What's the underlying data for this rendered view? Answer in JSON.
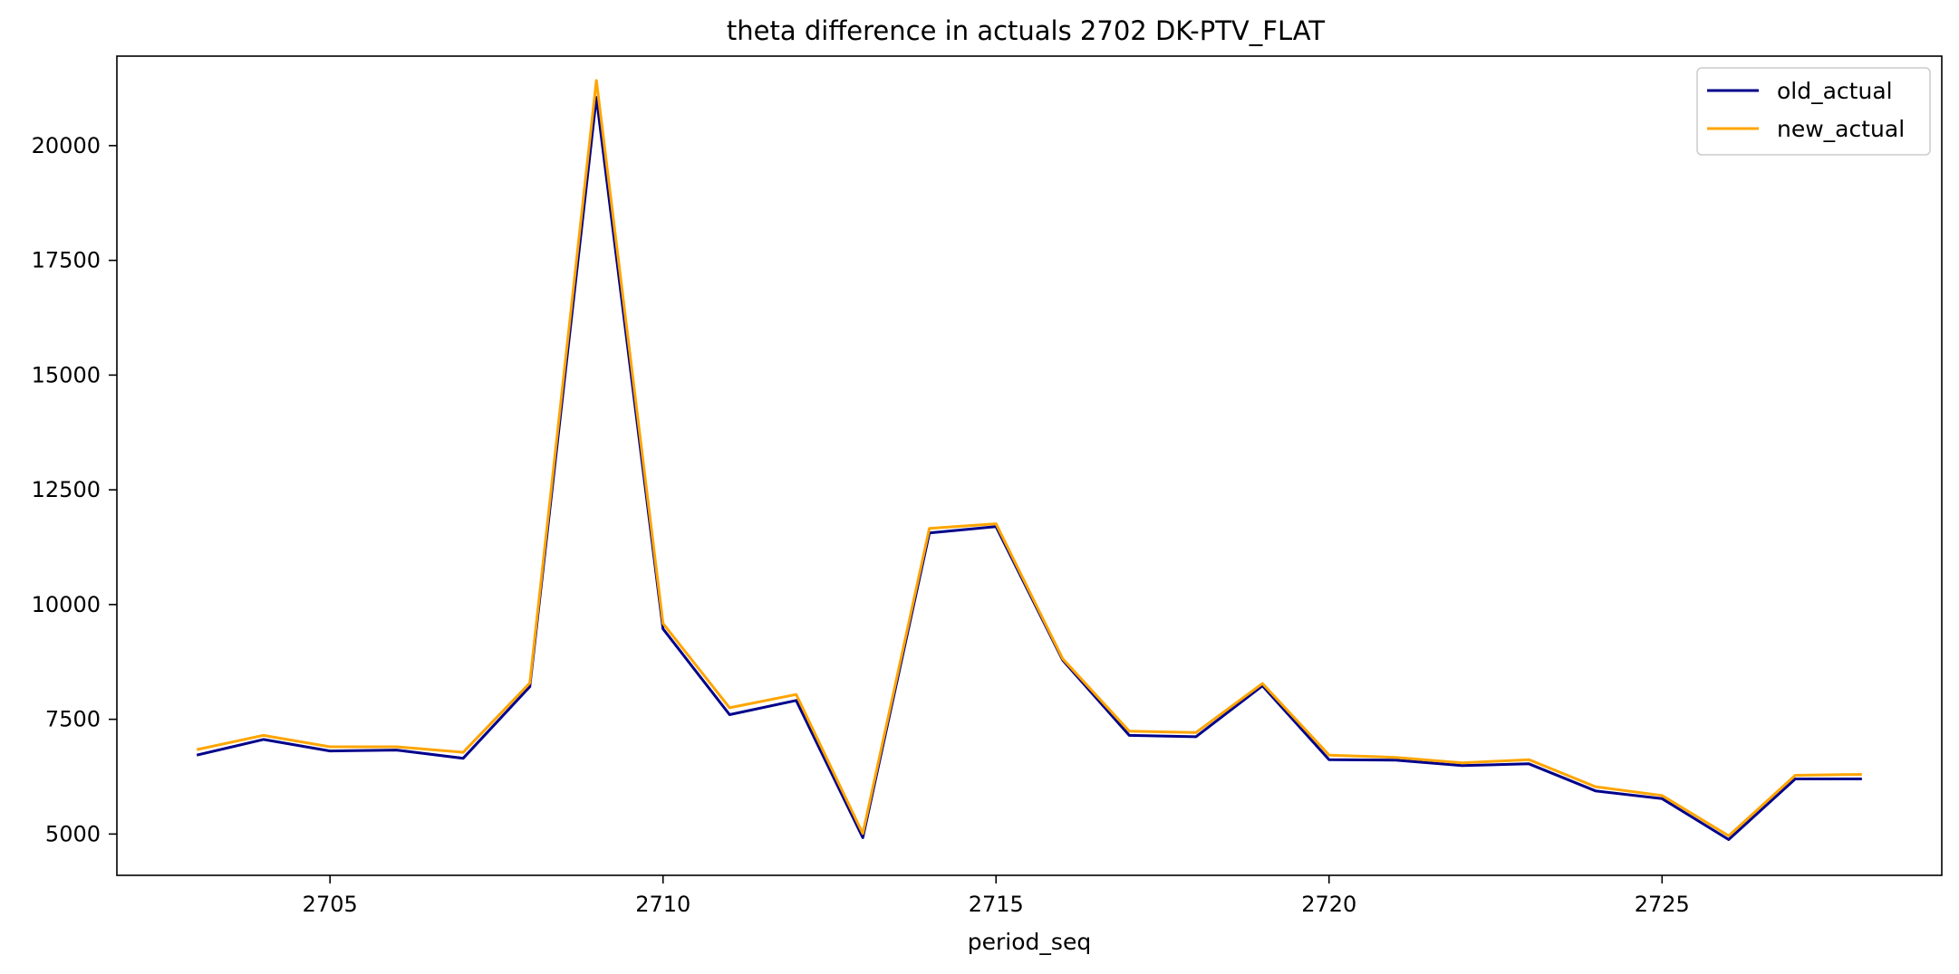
{
  "chart_data": {
    "type": "line",
    "title": "theta difference in actuals 2702 DK-PTV_FLAT",
    "xlabel": "period_seq",
    "ylabel": "",
    "xlim": [
      2701.8,
      2729.2
    ],
    "ylim": [
      4100,
      21950
    ],
    "xticks": [
      2705,
      2710,
      2715,
      2720,
      2725
    ],
    "yticks": [
      5000,
      7500,
      10000,
      12500,
      15000,
      17500,
      20000
    ],
    "grid": false,
    "legend_position": "top-right",
    "x": [
      2703,
      2704,
      2705,
      2706,
      2707,
      2708,
      2709,
      2710,
      2711,
      2712,
      2713,
      2714,
      2715,
      2716,
      2717,
      2718,
      2719,
      2720,
      2721,
      2722,
      2723,
      2724,
      2725,
      2726,
      2727,
      2728
    ],
    "series": [
      {
        "name": "old_actual",
        "color": "#00008b",
        "values": [
          6720,
          7060,
          6810,
          6830,
          6650,
          8210,
          21050,
          9470,
          7600,
          7910,
          4920,
          11560,
          11700,
          8790,
          7150,
          7120,
          8230,
          6620,
          6610,
          6490,
          6530,
          5940,
          5770,
          4880,
          6200,
          6200
        ]
      },
      {
        "name": "new_actual",
        "color": "#ffa500",
        "values": [
          6840,
          7150,
          6900,
          6900,
          6780,
          8290,
          21420,
          9590,
          7750,
          8040,
          5010,
          11660,
          11760,
          8820,
          7240,
          7210,
          8280,
          6720,
          6670,
          6550,
          6620,
          6030,
          5840,
          4960,
          6280,
          6300
        ]
      }
    ]
  }
}
